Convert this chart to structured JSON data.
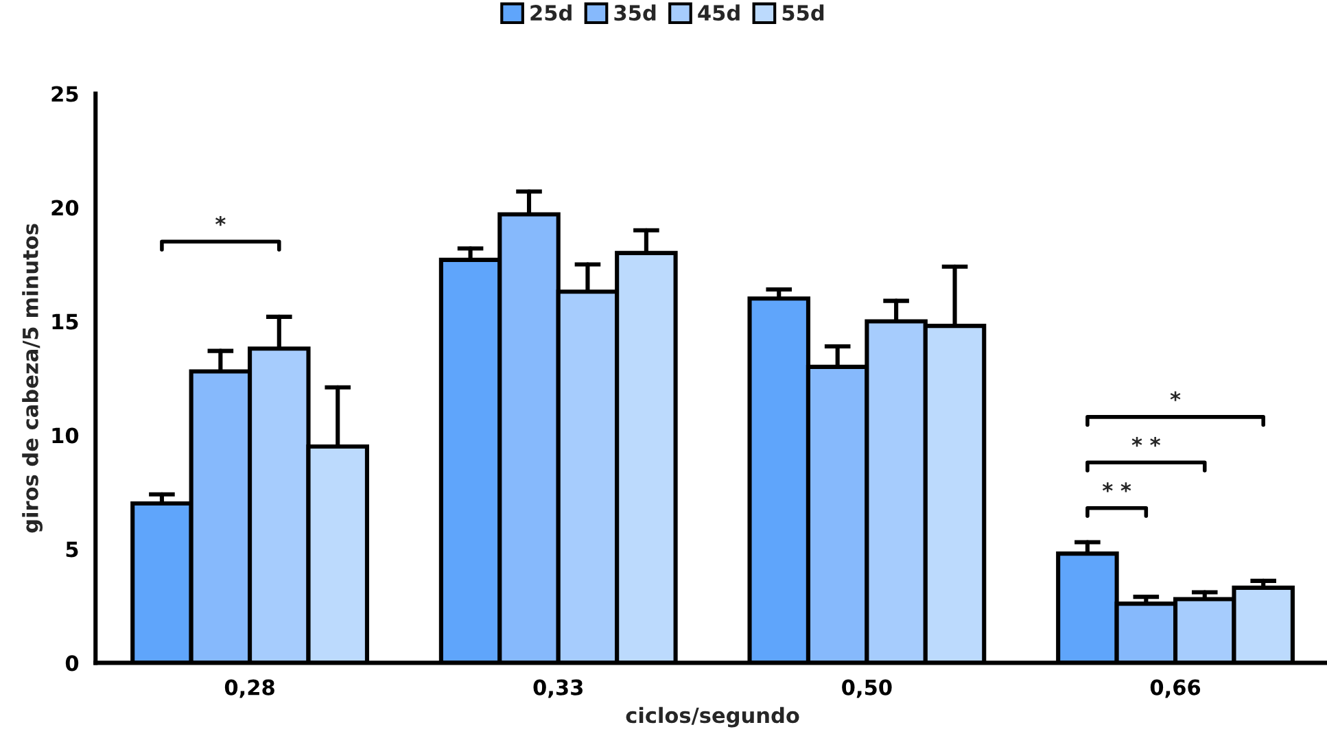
{
  "chart_data": {
    "type": "bar",
    "xlabel": "ciclos/segundo",
    "ylabel": "giros de cabeza/5 minutos",
    "categories": [
      "0,28",
      "0,33",
      "0,50",
      "0,66"
    ],
    "series": [
      {
        "name": "25d",
        "color": "#5fa5fb",
        "values": [
          7.0,
          17.7,
          16.0,
          4.8
        ],
        "errors": [
          [
            7.0,
            7.4
          ],
          [
            17.7,
            18.2
          ],
          [
            16.0,
            16.4
          ],
          [
            4.8,
            5.3
          ]
        ]
      },
      {
        "name": "35d",
        "color": "#86b9fc",
        "values": [
          12.8,
          19.7,
          13.0,
          2.6
        ],
        "errors": [
          [
            12.8,
            13.7
          ],
          [
            19.7,
            20.7
          ],
          [
            13.0,
            13.9
          ],
          [
            2.6,
            2.9
          ]
        ]
      },
      {
        "name": "45d",
        "color": "#a6ccfd",
        "values": [
          13.8,
          16.3,
          15.0,
          2.8
        ],
        "errors": [
          [
            13.8,
            15.2
          ],
          [
            16.3,
            17.5
          ],
          [
            15.0,
            15.9
          ],
          [
            2.8,
            3.1
          ]
        ]
      },
      {
        "name": "55d",
        "color": "#bcdafd",
        "values": [
          9.5,
          18.0,
          14.8,
          3.3
        ],
        "errors": [
          [
            9.5,
            12.1
          ],
          [
            18.0,
            19.0
          ],
          [
            14.8,
            17.4
          ],
          [
            3.3,
            3.6
          ]
        ]
      }
    ],
    "ylim": [
      0,
      25
    ],
    "yticks": [
      0,
      5,
      10,
      15,
      20,
      25
    ],
    "grid": false,
    "legend": "top",
    "annotations": [
      "*",
      "* *",
      "* *",
      "*"
    ]
  }
}
